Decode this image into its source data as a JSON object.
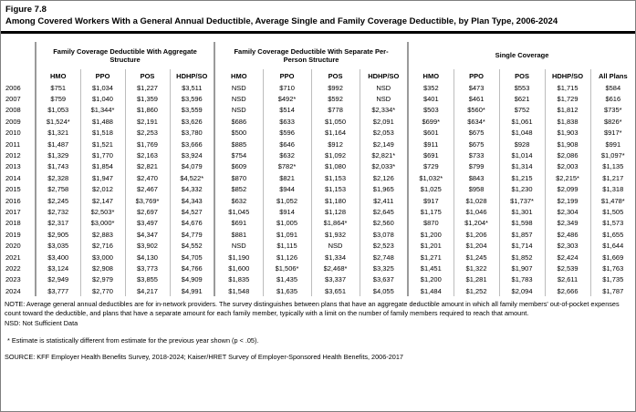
{
  "figure": {
    "label": "Figure 7.8",
    "title": "Among Covered Workers With a General Annual Deductible, Average Single and Family Coverage Deductible, by Plan Type, 2006-2024"
  },
  "table": {
    "groups": [
      {
        "label": "Family Coverage Deductible With Aggregate Structure",
        "columns": [
          "HMO",
          "PPO",
          "POS",
          "HDHP/SO"
        ]
      },
      {
        "label": "Family Coverage Deductible With Separate Per-Person Structure",
        "columns": [
          "HMO",
          "PPO",
          "POS",
          "HDHP/SO"
        ]
      },
      {
        "label": "Single Coverage",
        "columns": [
          "HMO",
          "PPO",
          "POS",
          "HDHP/SO",
          "All Plans"
        ]
      }
    ],
    "rows": [
      {
        "year": "2006",
        "values": [
          "$751",
          "$1,034",
          "$1,227",
          "$3,511",
          "NSD",
          "$710",
          "$992",
          "NSD",
          "$352",
          "$473",
          "$553",
          "$1,715",
          "$584"
        ]
      },
      {
        "year": "2007",
        "values": [
          "$759",
          "$1,040",
          "$1,359",
          "$3,596",
          "NSD",
          "$492*",
          "$592",
          "NSD",
          "$401",
          "$461",
          "$621",
          "$1,729",
          "$616"
        ]
      },
      {
        "year": "2008",
        "values": [
          "$1,053",
          "$1,344*",
          "$1,860",
          "$3,559",
          "NSD",
          "$514",
          "$778",
          "$2,334*",
          "$503",
          "$560*",
          "$752",
          "$1,812",
          "$735*"
        ]
      },
      {
        "year": "2009",
        "values": [
          "$1,524*",
          "$1,488",
          "$2,191",
          "$3,626",
          "$686",
          "$633",
          "$1,050",
          "$2,091",
          "$699*",
          "$634*",
          "$1,061",
          "$1,838",
          "$826*"
        ]
      },
      {
        "year": "2010",
        "values": [
          "$1,321",
          "$1,518",
          "$2,253",
          "$3,780",
          "$500",
          "$596",
          "$1,164",
          "$2,053",
          "$601",
          "$675",
          "$1,048",
          "$1,903",
          "$917*"
        ]
      },
      {
        "year": "2011",
        "values": [
          "$1,487",
          "$1,521",
          "$1,769",
          "$3,666",
          "$885",
          "$646",
          "$912",
          "$2,149",
          "$911",
          "$675",
          "$928",
          "$1,908",
          "$991"
        ]
      },
      {
        "year": "2012",
        "values": [
          "$1,329",
          "$1,770",
          "$2,163",
          "$3,924",
          "$754",
          "$632",
          "$1,092",
          "$2,821*",
          "$691",
          "$733",
          "$1,014",
          "$2,086",
          "$1,097*"
        ]
      },
      {
        "year": "2013",
        "values": [
          "$1,743",
          "$1,854",
          "$2,821",
          "$4,079",
          "$609",
          "$782*",
          "$1,080",
          "$2,033*",
          "$729",
          "$799",
          "$1,314",
          "$2,003",
          "$1,135"
        ]
      },
      {
        "year": "2014",
        "values": [
          "$2,328",
          "$1,947",
          "$2,470",
          "$4,522*",
          "$870",
          "$821",
          "$1,153",
          "$2,126",
          "$1,032*",
          "$843",
          "$1,215",
          "$2,215*",
          "$1,217"
        ]
      },
      {
        "year": "2015",
        "values": [
          "$2,758",
          "$2,012",
          "$2,467",
          "$4,332",
          "$852",
          "$944",
          "$1,153",
          "$1,965",
          "$1,025",
          "$958",
          "$1,230",
          "$2,099",
          "$1,318"
        ]
      },
      {
        "year": "2016",
        "values": [
          "$2,245",
          "$2,147",
          "$3,769*",
          "$4,343",
          "$632",
          "$1,052",
          "$1,180",
          "$2,411",
          "$917",
          "$1,028",
          "$1,737*",
          "$2,199",
          "$1,478*"
        ]
      },
      {
        "year": "2017",
        "values": [
          "$2,732",
          "$2,503*",
          "$2,697",
          "$4,527",
          "$1,045",
          "$914",
          "$1,128",
          "$2,645",
          "$1,175",
          "$1,046",
          "$1,301",
          "$2,304",
          "$1,505"
        ]
      },
      {
        "year": "2018",
        "values": [
          "$2,317",
          "$3,000*",
          "$3,497",
          "$4,676",
          "$691",
          "$1,005",
          "$1,864*",
          "$2,560",
          "$870",
          "$1,204*",
          "$1,598",
          "$2,349",
          "$1,573"
        ]
      },
      {
        "year": "2019",
        "values": [
          "$2,905",
          "$2,883",
          "$4,347",
          "$4,779",
          "$881",
          "$1,091",
          "$1,932",
          "$3,078",
          "$1,200",
          "$1,206",
          "$1,857",
          "$2,486",
          "$1,655"
        ]
      },
      {
        "year": "2020",
        "values": [
          "$3,035",
          "$2,716",
          "$3,902",
          "$4,552",
          "NSD",
          "$1,115",
          "NSD",
          "$2,523",
          "$1,201",
          "$1,204",
          "$1,714",
          "$2,303",
          "$1,644"
        ]
      },
      {
        "year": "2021",
        "values": [
          "$3,400",
          "$3,000",
          "$4,130",
          "$4,705",
          "$1,190",
          "$1,126",
          "$1,334",
          "$2,748",
          "$1,271",
          "$1,245",
          "$1,852",
          "$2,424",
          "$1,669"
        ]
      },
      {
        "year": "2022",
        "values": [
          "$3,124",
          "$2,908",
          "$3,773",
          "$4,766",
          "$1,600",
          "$1,506*",
          "$2,468*",
          "$3,325",
          "$1,451",
          "$1,322",
          "$1,907",
          "$2,539",
          "$1,763"
        ]
      },
      {
        "year": "2023",
        "values": [
          "$2,949",
          "$2,979",
          "$3,855",
          "$4,909",
          "$1,835",
          "$1,435",
          "$3,337",
          "$3,637",
          "$1,200",
          "$1,281",
          "$1,783",
          "$2,611",
          "$1,735"
        ]
      },
      {
        "year": "2024",
        "values": [
          "$3,777",
          "$2,770",
          "$4,217",
          "$4,991",
          "$1,548",
          "$1,635",
          "$3,651",
          "$4,055",
          "$1,484",
          "$1,252",
          "$2,094",
          "$2,666",
          "$1,787"
        ]
      }
    ]
  },
  "notes": {
    "note": "NOTE: Average general annual deductibles are for in-network providers. The survey distinguishes between plans that have an aggregate deductible amount in which all family members' out-of-pocket expenses count toward the deductible, and plans that have a separate amount for each family member, typically with a limit on the number of family members required to reach that amount.",
    "nsd": "NSD: Not Sufficient Data",
    "star": "* Estimate is statistically different from estimate for the previous year shown (p < .05).",
    "source": "SOURCE: KFF Employer Health Benefits Survey, 2018-2024; Kaiser/HRET Survey of Employer-Sponsored Health Benefits, 2006-2017"
  }
}
